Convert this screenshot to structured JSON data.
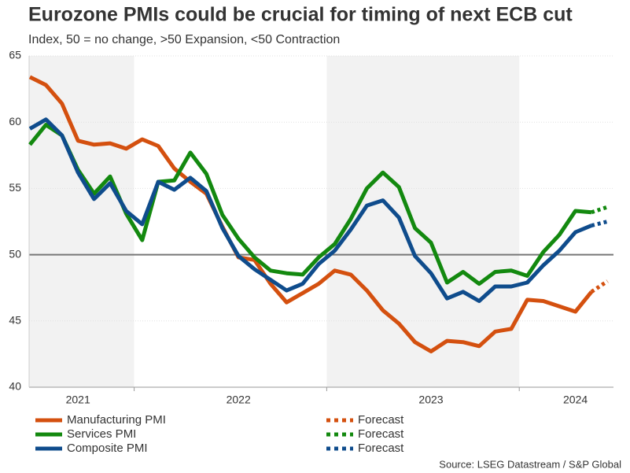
{
  "chart_data": {
    "type": "line",
    "title": "Eurozone PMIs could be crucial for timing of next ECB cut",
    "subtitle": "Index, 50 = no change, >50 Expansion, <50 Contraction",
    "source": "Source: LSEG Datastream / S&P Global",
    "categories": [
      null,
      null,
      null,
      "2021",
      null,
      null,
      null,
      null,
      null,
      null,
      null,
      null,
      null,
      "2022",
      null,
      null,
      null,
      null,
      null,
      null,
      null,
      null,
      null,
      null,
      null,
      "2023",
      null,
      null,
      null,
      null,
      null,
      null,
      null,
      null,
      "2024",
      null,
      null
    ],
    "ylim": [
      40,
      65
    ],
    "yticks": [
      40,
      45,
      50,
      55,
      60,
      65
    ],
    "hline": 50,
    "grid": true,
    "series": [
      {
        "name": "Manufacturing PMI",
        "color": "#d4500f",
        "style": "solid",
        "values": [
          63.4,
          62.8,
          61.4,
          58.6,
          58.3,
          58.4,
          58.0,
          58.7,
          58.2,
          56.5,
          55.5,
          54.6,
          52.1,
          49.8,
          49.6,
          47.8,
          46.4,
          47.1,
          47.8,
          48.8,
          48.5,
          47.3,
          45.8,
          44.8,
          43.4,
          42.7,
          43.5,
          43.4,
          43.1,
          44.2,
          44.4,
          46.6,
          46.5,
          46.1,
          45.7,
          47.2,
          null
        ]
      },
      {
        "name": "Services PMI",
        "color": "#13890f",
        "style": "solid",
        "values": [
          58.3,
          59.8,
          59.0,
          56.4,
          54.6,
          55.9,
          53.1,
          51.1,
          55.5,
          55.6,
          57.7,
          56.1,
          53.0,
          51.2,
          49.8,
          48.8,
          48.6,
          48.5,
          49.8,
          50.8,
          52.7,
          55.0,
          56.2,
          55.1,
          52.0,
          50.9,
          47.9,
          48.7,
          47.8,
          48.7,
          48.8,
          48.4,
          50.2,
          51.5,
          53.3,
          53.2,
          null
        ]
      },
      {
        "name": "Composite PMI",
        "color": "#0f4c8c",
        "style": "solid",
        "values": [
          59.5,
          60.2,
          59.0,
          56.2,
          54.2,
          55.4,
          53.3,
          52.3,
          55.5,
          54.9,
          55.8,
          54.8,
          52.0,
          49.9,
          48.9,
          48.1,
          47.3,
          47.8,
          49.3,
          50.3,
          51.9,
          53.7,
          54.1,
          52.8,
          49.9,
          48.6,
          46.7,
          47.2,
          46.5,
          47.6,
          47.6,
          47.9,
          49.2,
          50.3,
          51.7,
          52.2,
          null
        ]
      },
      {
        "name": "Forecast",
        "color": "#d4500f",
        "style": "dotted",
        "values": [
          null,
          null,
          null,
          null,
          null,
          null,
          null,
          null,
          null,
          null,
          null,
          null,
          null,
          null,
          null,
          null,
          null,
          null,
          null,
          null,
          null,
          null,
          null,
          null,
          null,
          null,
          null,
          null,
          null,
          null,
          null,
          null,
          null,
          null,
          null,
          47.2,
          48.0
        ]
      },
      {
        "name": "Forecast",
        "color": "#13890f",
        "style": "dotted",
        "values": [
          null,
          null,
          null,
          null,
          null,
          null,
          null,
          null,
          null,
          null,
          null,
          null,
          null,
          null,
          null,
          null,
          null,
          null,
          null,
          null,
          null,
          null,
          null,
          null,
          null,
          null,
          null,
          null,
          null,
          null,
          null,
          null,
          null,
          null,
          null,
          53.2,
          53.6
        ]
      },
      {
        "name": "Forecast",
        "color": "#0f4c8c",
        "style": "dotted",
        "values": [
          null,
          null,
          null,
          null,
          null,
          null,
          null,
          null,
          null,
          null,
          null,
          null,
          null,
          null,
          null,
          null,
          null,
          null,
          null,
          null,
          null,
          null,
          null,
          null,
          null,
          null,
          null,
          null,
          null,
          null,
          null,
          null,
          null,
          null,
          null,
          52.2,
          52.5
        ]
      }
    ]
  }
}
